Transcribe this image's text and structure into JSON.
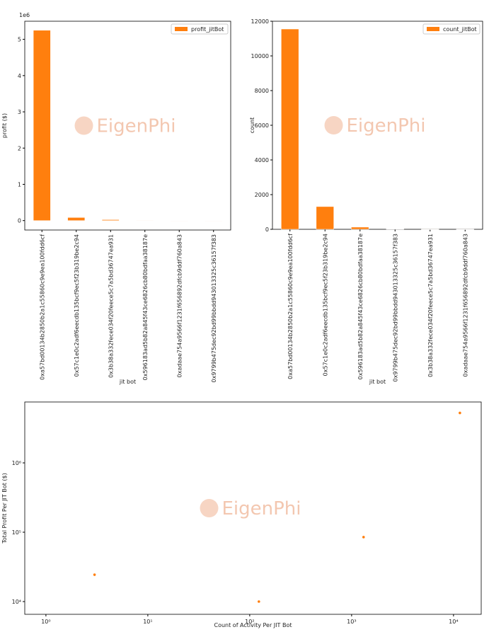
{
  "chart_data": [
    {
      "type": "bar",
      "x_label": "jit bot",
      "y_label": "profit ($)",
      "y_offset_label": "1e6",
      "watermark": "EigenPhi",
      "categories": [
        "0xa57bd00134b2850b2a1c55860c9e9ea100fdd6cf",
        "0x57c1e0c2adf6eecdb135bcf9ec5f23b319be2c94",
        "0x3b38a332fece034f20feece5c7a5bd36747ea931",
        "0x596183ad5b82a845f43ce6826cb80bdfaa38187e",
        "0xadaae754a9566f1231f656892dfcb9ddf760a843",
        "0x9799b475dec92bd99bbdd943013325c36157f383"
      ],
      "series": [
        {
          "name": "profit_jitBot",
          "color": "#ff7f0e",
          "values": [
            5.25,
            0.085,
            0.025,
            0.01,
            0,
            0
          ]
        }
      ],
      "ylim": [
        -0.26,
        5.5
      ],
      "yticks": [
        0,
        1,
        2,
        3,
        4,
        5
      ],
      "legend": "upper right"
    },
    {
      "type": "bar",
      "x_label": "jit bot",
      "y_label": "count",
      "watermark": "EigenPhi",
      "categories": [
        "0xa57bd00134b2850b2a1c55860c9e9ea100fdd6cf",
        "0x57c1e0c2adf6eecdb135bcf9ec5f23b319be2c94",
        "0x596183ad5b82a845f43ce6826cb80bdfaa38187e",
        "0x9799b475dec92bd99bbdd943013325c36157f383",
        "0x3b38a332fece034f20feece5c7a5bd36747ea931",
        "0xadaae754a9566f1231f656892dfcb9ddf760a843"
      ],
      "series": [
        {
          "name": "count_jitBot",
          "color": "#ff7f0e",
          "values": [
            11550,
            1310,
            125,
            20,
            3,
            1
          ]
        }
      ],
      "ylim": [
        0,
        12000
      ],
      "yticks": [
        0,
        2000,
        4000,
        6000,
        8000,
        10000,
        12000
      ],
      "legend": "upper right"
    },
    {
      "type": "scatter",
      "x_label": "Count of Activity Per JIT Bot",
      "y_label": "Total Profit Per JIT Bot ($)",
      "watermark": "EigenPhi",
      "x": [
        3,
        123,
        1310,
        11550
      ],
      "values": [
        24400,
        10000,
        85000,
        5250000
      ],
      "color": "#ff7f0e",
      "xscale": "log",
      "yscale": "log",
      "xlim": [
        0.62,
        18700
      ],
      "ylim": [
        6550,
        7550000
      ],
      "xticks": [
        {
          "value": 1,
          "label": "10⁰"
        },
        {
          "value": 10,
          "label": "10¹"
        },
        {
          "value": 100,
          "label": "10²"
        },
        {
          "value": 1000,
          "label": "10³"
        },
        {
          "value": 10000,
          "label": "10⁴"
        }
      ],
      "yticks": [
        {
          "value": 10000,
          "label": "10⁴"
        },
        {
          "value": 100000,
          "label": "10⁵"
        },
        {
          "value": 1000000,
          "label": "10⁶"
        }
      ]
    }
  ]
}
